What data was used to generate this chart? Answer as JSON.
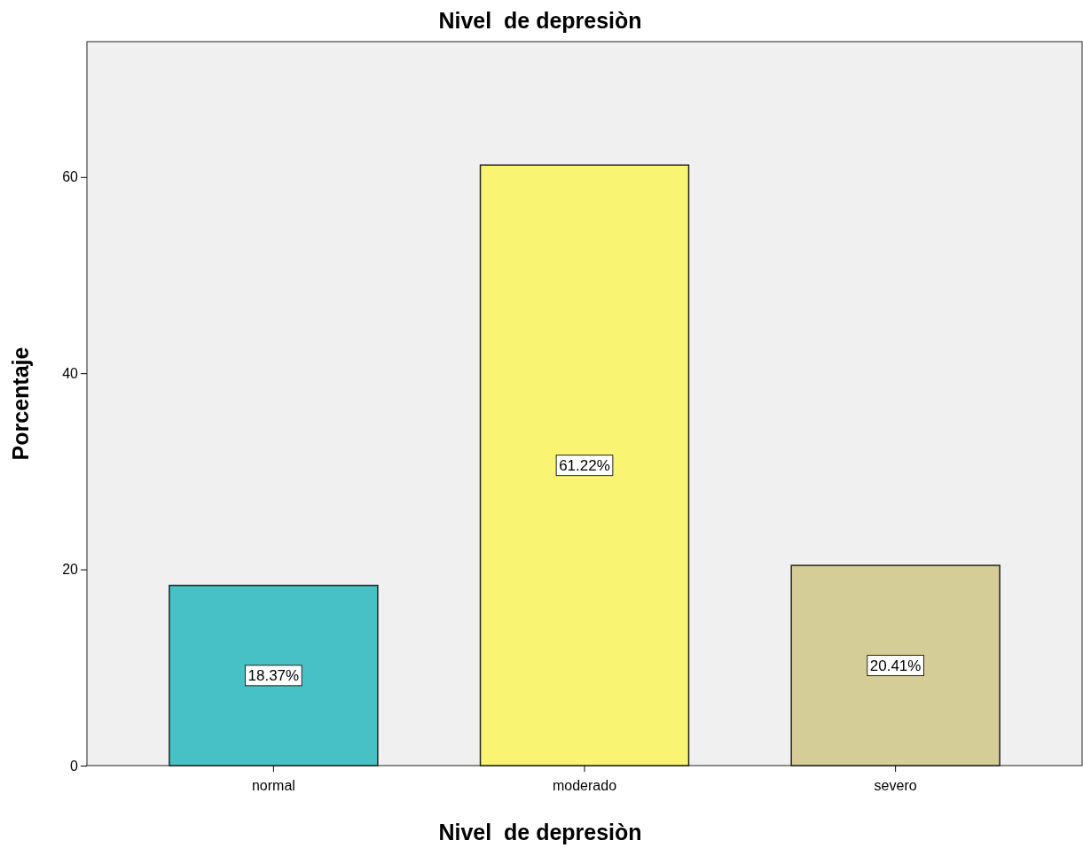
{
  "chart_data": {
    "type": "bar",
    "title": "Nivel  de depresiòn",
    "xlabel": "Nivel  de depresiòn",
    "ylabel": "Porcentaje",
    "categories": [
      "normal",
      "moderado",
      "severo"
    ],
    "values": [
      18.37,
      61.22,
      20.41
    ],
    "value_labels": [
      "18.37%",
      "61.22%",
      "20.41%"
    ],
    "colors": [
      "#48c1c6",
      "#f9f471",
      "#d4cd98"
    ],
    "ylim": [
      0,
      73.8
    ],
    "yticks": [
      0,
      20,
      40,
      60
    ],
    "grid": false
  }
}
